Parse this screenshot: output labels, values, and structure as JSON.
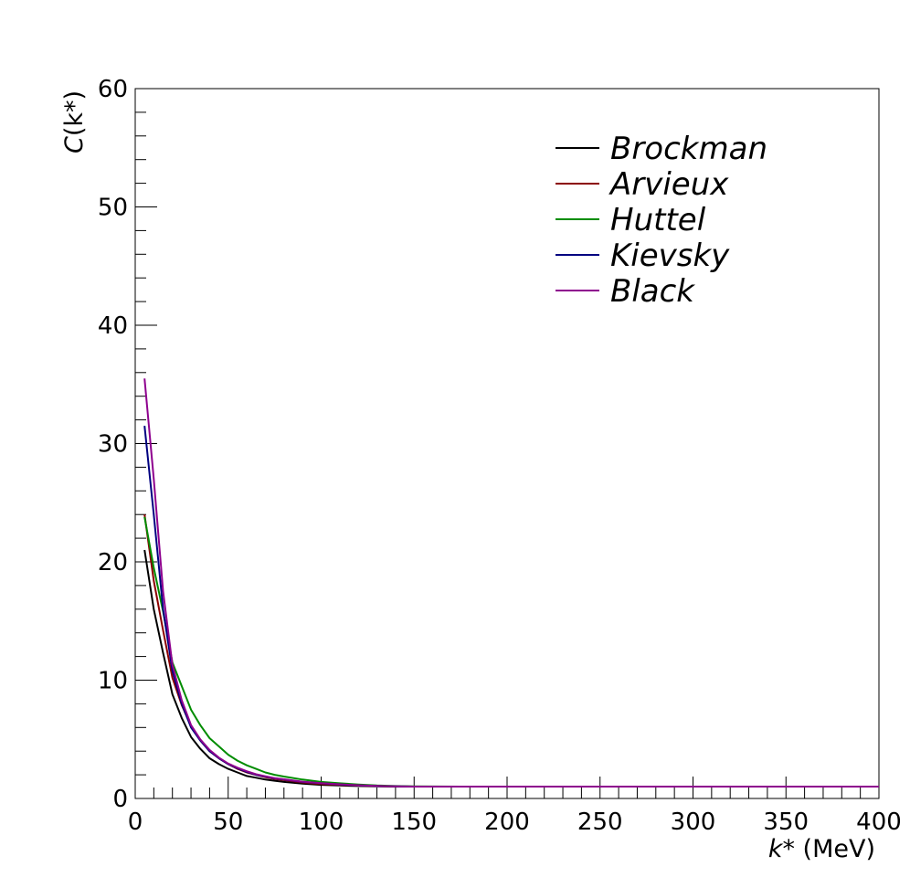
{
  "chart_data": {
    "type": "line",
    "title": "",
    "xlabel": {
      "var": "k*",
      "unit": " (MeV)"
    },
    "ylabel": {
      "var": "C",
      "arg": "(k*)"
    },
    "xlim": [
      0,
      400
    ],
    "ylim": [
      0,
      60
    ],
    "x_ticks": [
      0,
      50,
      100,
      150,
      200,
      250,
      300,
      350,
      400
    ],
    "y_ticks": [
      0,
      10,
      20,
      30,
      40,
      50,
      60
    ],
    "grid": false,
    "legend_position": "top-right",
    "x": [
      5,
      10,
      15,
      20,
      25,
      30,
      35,
      40,
      45,
      50,
      55,
      60,
      65,
      70,
      75,
      80,
      90,
      100,
      110,
      120,
      130,
      140,
      150,
      175,
      200,
      250,
      300,
      350,
      400
    ],
    "series": [
      {
        "name": "Brockman",
        "color": "#000000",
        "values": [
          21.0,
          16.0,
          12.3,
          8.8,
          6.8,
          5.2,
          4.2,
          3.4,
          2.9,
          2.5,
          2.2,
          1.9,
          1.75,
          1.6,
          1.5,
          1.4,
          1.25,
          1.15,
          1.1,
          1.05,
          1.02,
          1.0,
          1.0,
          1.0,
          1.0,
          1.0,
          1.0,
          1.0,
          1.0
        ]
      },
      {
        "name": "Arvieux",
        "color": "#8b0000",
        "values": [
          24.0,
          18.4,
          14.2,
          10.2,
          7.9,
          6.1,
          4.9,
          4.0,
          3.4,
          2.9,
          2.5,
          2.2,
          2.0,
          1.8,
          1.65,
          1.55,
          1.35,
          1.22,
          1.15,
          1.08,
          1.04,
          1.02,
          1.0,
          1.0,
          1.0,
          1.0,
          1.0,
          1.0,
          1.0
        ]
      },
      {
        "name": "Huttel",
        "color": "#008c00",
        "values": [
          23.8,
          19.5,
          15.8,
          11.5,
          9.5,
          7.5,
          6.2,
          5.1,
          4.4,
          3.7,
          3.2,
          2.8,
          2.5,
          2.2,
          2.0,
          1.85,
          1.6,
          1.4,
          1.28,
          1.18,
          1.1,
          1.05,
          1.02,
          1.0,
          1.0,
          1.0,
          1.0,
          1.0,
          1.0
        ]
      },
      {
        "name": "Kievsky",
        "color": "#000080",
        "values": [
          31.5,
          24.0,
          16.0,
          10.8,
          8.0,
          6.0,
          4.9,
          4.0,
          3.4,
          2.9,
          2.55,
          2.25,
          2.0,
          1.85,
          1.7,
          1.6,
          1.4,
          1.28,
          1.18,
          1.1,
          1.05,
          1.02,
          1.0,
          1.0,
          1.0,
          1.0,
          1.0,
          1.0,
          1.0
        ]
      },
      {
        "name": "Black",
        "color": "#8e008e",
        "values": [
          35.5,
          27.0,
          17.5,
          11.3,
          8.3,
          6.2,
          5.0,
          4.1,
          3.45,
          2.95,
          2.6,
          2.3,
          2.05,
          1.88,
          1.72,
          1.62,
          1.42,
          1.3,
          1.2,
          1.12,
          1.06,
          1.03,
          1.0,
          1.0,
          1.0,
          1.0,
          1.0,
          1.0,
          1.0
        ]
      }
    ]
  }
}
